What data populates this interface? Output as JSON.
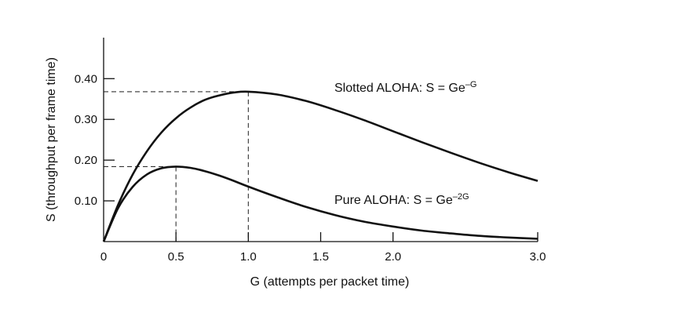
{
  "chart_data": {
    "type": "line",
    "title": "",
    "xlabel": "G (attempts per packet time)",
    "ylabel": "S (throughput per frame time)",
    "xlim": [
      0,
      3.0
    ],
    "ylim": [
      0,
      0.5
    ],
    "x_ticks": [
      {
        "value": 0,
        "label": "0"
      },
      {
        "value": 0.5,
        "label": "0.5"
      },
      {
        "value": 1.0,
        "label": "1.0"
      },
      {
        "value": 1.5,
        "label": "1.5"
      },
      {
        "value": 2.0,
        "label": "2.0"
      },
      {
        "value": 3.0,
        "label": "3.0"
      }
    ],
    "y_ticks": [
      {
        "value": 0.1,
        "label": "0.10"
      },
      {
        "value": 0.2,
        "label": "0.20"
      },
      {
        "value": 0.3,
        "label": "0.30"
      },
      {
        "value": 0.4,
        "label": "0.40"
      }
    ],
    "grid": false,
    "series": [
      {
        "label": "Slotted ALOHA: S = Ge",
        "label_exponent": "–G",
        "x": [
          0,
          0.1,
          0.2,
          0.3,
          0.4,
          0.5,
          0.6,
          0.7,
          0.8,
          0.9,
          1.0,
          1.2,
          1.4,
          1.6,
          1.8,
          2.0,
          2.2,
          2.4,
          2.6,
          2.8,
          3.0
        ],
        "y": [
          0,
          0.09,
          0.164,
          0.222,
          0.268,
          0.303,
          0.329,
          0.348,
          0.359,
          0.366,
          0.368,
          0.361,
          0.345,
          0.323,
          0.298,
          0.271,
          0.244,
          0.218,
          0.193,
          0.17,
          0.149
        ]
      },
      {
        "label": "Pure ALOHA: S = Ge",
        "label_exponent": "–2G",
        "x": [
          0,
          0.1,
          0.2,
          0.3,
          0.4,
          0.5,
          0.6,
          0.7,
          0.8,
          0.9,
          1.0,
          1.2,
          1.4,
          1.6,
          1.8,
          2.0,
          2.2,
          2.4,
          2.6,
          2.8,
          3.0
        ],
        "y": [
          0,
          0.082,
          0.134,
          0.165,
          0.18,
          0.184,
          0.181,
          0.173,
          0.162,
          0.149,
          0.135,
          0.109,
          0.085,
          0.065,
          0.049,
          0.037,
          0.027,
          0.02,
          0.014,
          0.01,
          0.007
        ]
      }
    ],
    "annotations": [
      {
        "type": "dashed-guide",
        "x": 1.0,
        "y": 0.368
      },
      {
        "type": "dashed-guide",
        "x": 0.5,
        "y": 0.184
      }
    ]
  }
}
